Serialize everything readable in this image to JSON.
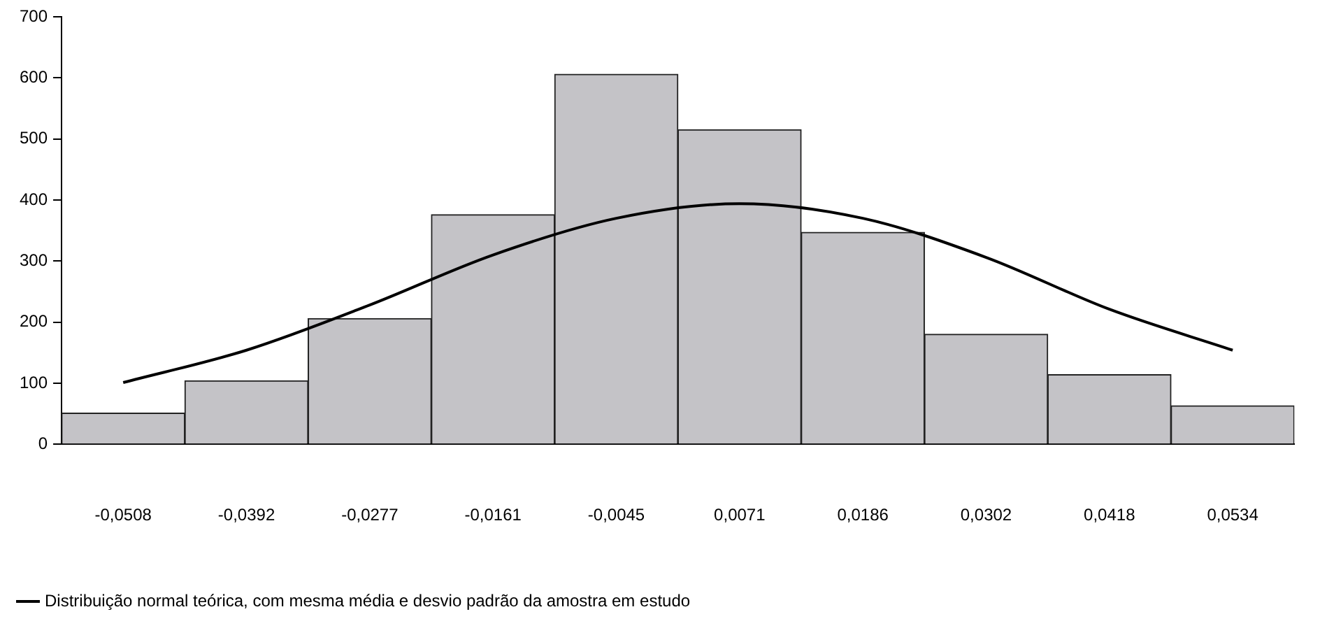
{
  "chart_data": {
    "type": "bar",
    "categories": [
      "-0,0508",
      "-0,0392",
      "-0,0277",
      "-0,0161",
      "-0,0045",
      "0,0071",
      "0,0186",
      "0,0302",
      "0,0418",
      "0,0534"
    ],
    "series": [
      {
        "color": "#c4c3c7",
        "values": [
          51,
          104,
          206,
          376,
          606,
          515,
          347,
          180,
          114,
          63
        ]
      },
      {
        "type": "line",
        "name": "Distribuição normal teórica, com mesma média e desvio padrão da amostra em estudo",
        "color": "#000000",
        "values": [
          101,
          154,
          228,
          310,
          370,
          394,
          370,
          306,
          221,
          154
        ]
      }
    ],
    "ylim": [
      0,
      700
    ],
    "yticks": [
      0,
      100,
      200,
      300,
      400,
      500,
      600,
      700
    ],
    "grid": false,
    "legend": "bottom left",
    "marker": "none",
    "line_style": "solid"
  }
}
